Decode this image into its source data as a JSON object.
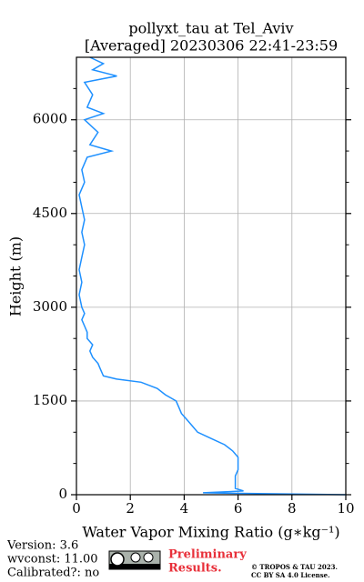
{
  "chart_data": {
    "type": "line",
    "title": [
      "pollyxt_tau at Tel_Aviv",
      "[Averaged] 20230306 22:41-23:59"
    ],
    "x_label": "Water Vapor Mixing Ratio (g∗kg⁻¹)",
    "y_label": "Height (m)",
    "color": "#1e90ff",
    "heights": [
      0,
      30,
      60,
      100,
      200,
      300,
      400,
      500,
      600,
      700,
      800,
      900,
      1000,
      1100,
      1200,
      1300,
      1400,
      1500,
      1600,
      1700,
      1800,
      1850,
      1900,
      2000,
      2100,
      2200,
      2300,
      2400,
      2500,
      2600,
      2700,
      2800,
      2900,
      3000,
      3200,
      3400,
      3600,
      3800,
      4000,
      4200,
      4400,
      4600,
      4800,
      5000,
      5200,
      5400,
      5500,
      5600,
      5800,
      6000,
      6100,
      6200,
      6400,
      6600,
      6700,
      6800,
      6900,
      7000
    ],
    "values": [
      10,
      4.7,
      6.2,
      5.9,
      5.9,
      5.9,
      6.0,
      6.0,
      6.0,
      5.8,
      5.5,
      5.0,
      4.5,
      4.3,
      4.1,
      3.9,
      3.8,
      3.7,
      3.3,
      3.0,
      2.4,
      1.5,
      1.0,
      0.9,
      0.8,
      0.6,
      0.5,
      0.6,
      0.4,
      0.4,
      0.3,
      0.2,
      0.3,
      0.2,
      0.1,
      0.2,
      0.1,
      0.2,
      0.3,
      0.2,
      0.3,
      0.2,
      0.1,
      0.3,
      0.2,
      0.4,
      1.3,
      0.5,
      0.8,
      0.3,
      1.0,
      0.4,
      0.6,
      0.3,
      1.5,
      0.6,
      1.0,
      0.5
    ],
    "xlim": [
      0,
      10
    ],
    "xticks": [
      0,
      2,
      4,
      6,
      8,
      10
    ],
    "ylim": [
      0,
      7000
    ],
    "yticks": [
      0,
      1500,
      3000,
      4500,
      6000
    ],
    "yminorticks": [
      500,
      1000,
      2000,
      2500,
      3500,
      4000,
      5000,
      5500,
      6500
    ],
    "grid": true
  },
  "footer": {
    "info": [
      "Version: 3.6",
      "wvconst:  11.00",
      "Calibrated?: no"
    ],
    "notice": [
      "Preliminary",
      "Results."
    ],
    "license": [
      "© TROPOS & TAU 2023.",
      "CC BY SA 4.0 License."
    ]
  }
}
